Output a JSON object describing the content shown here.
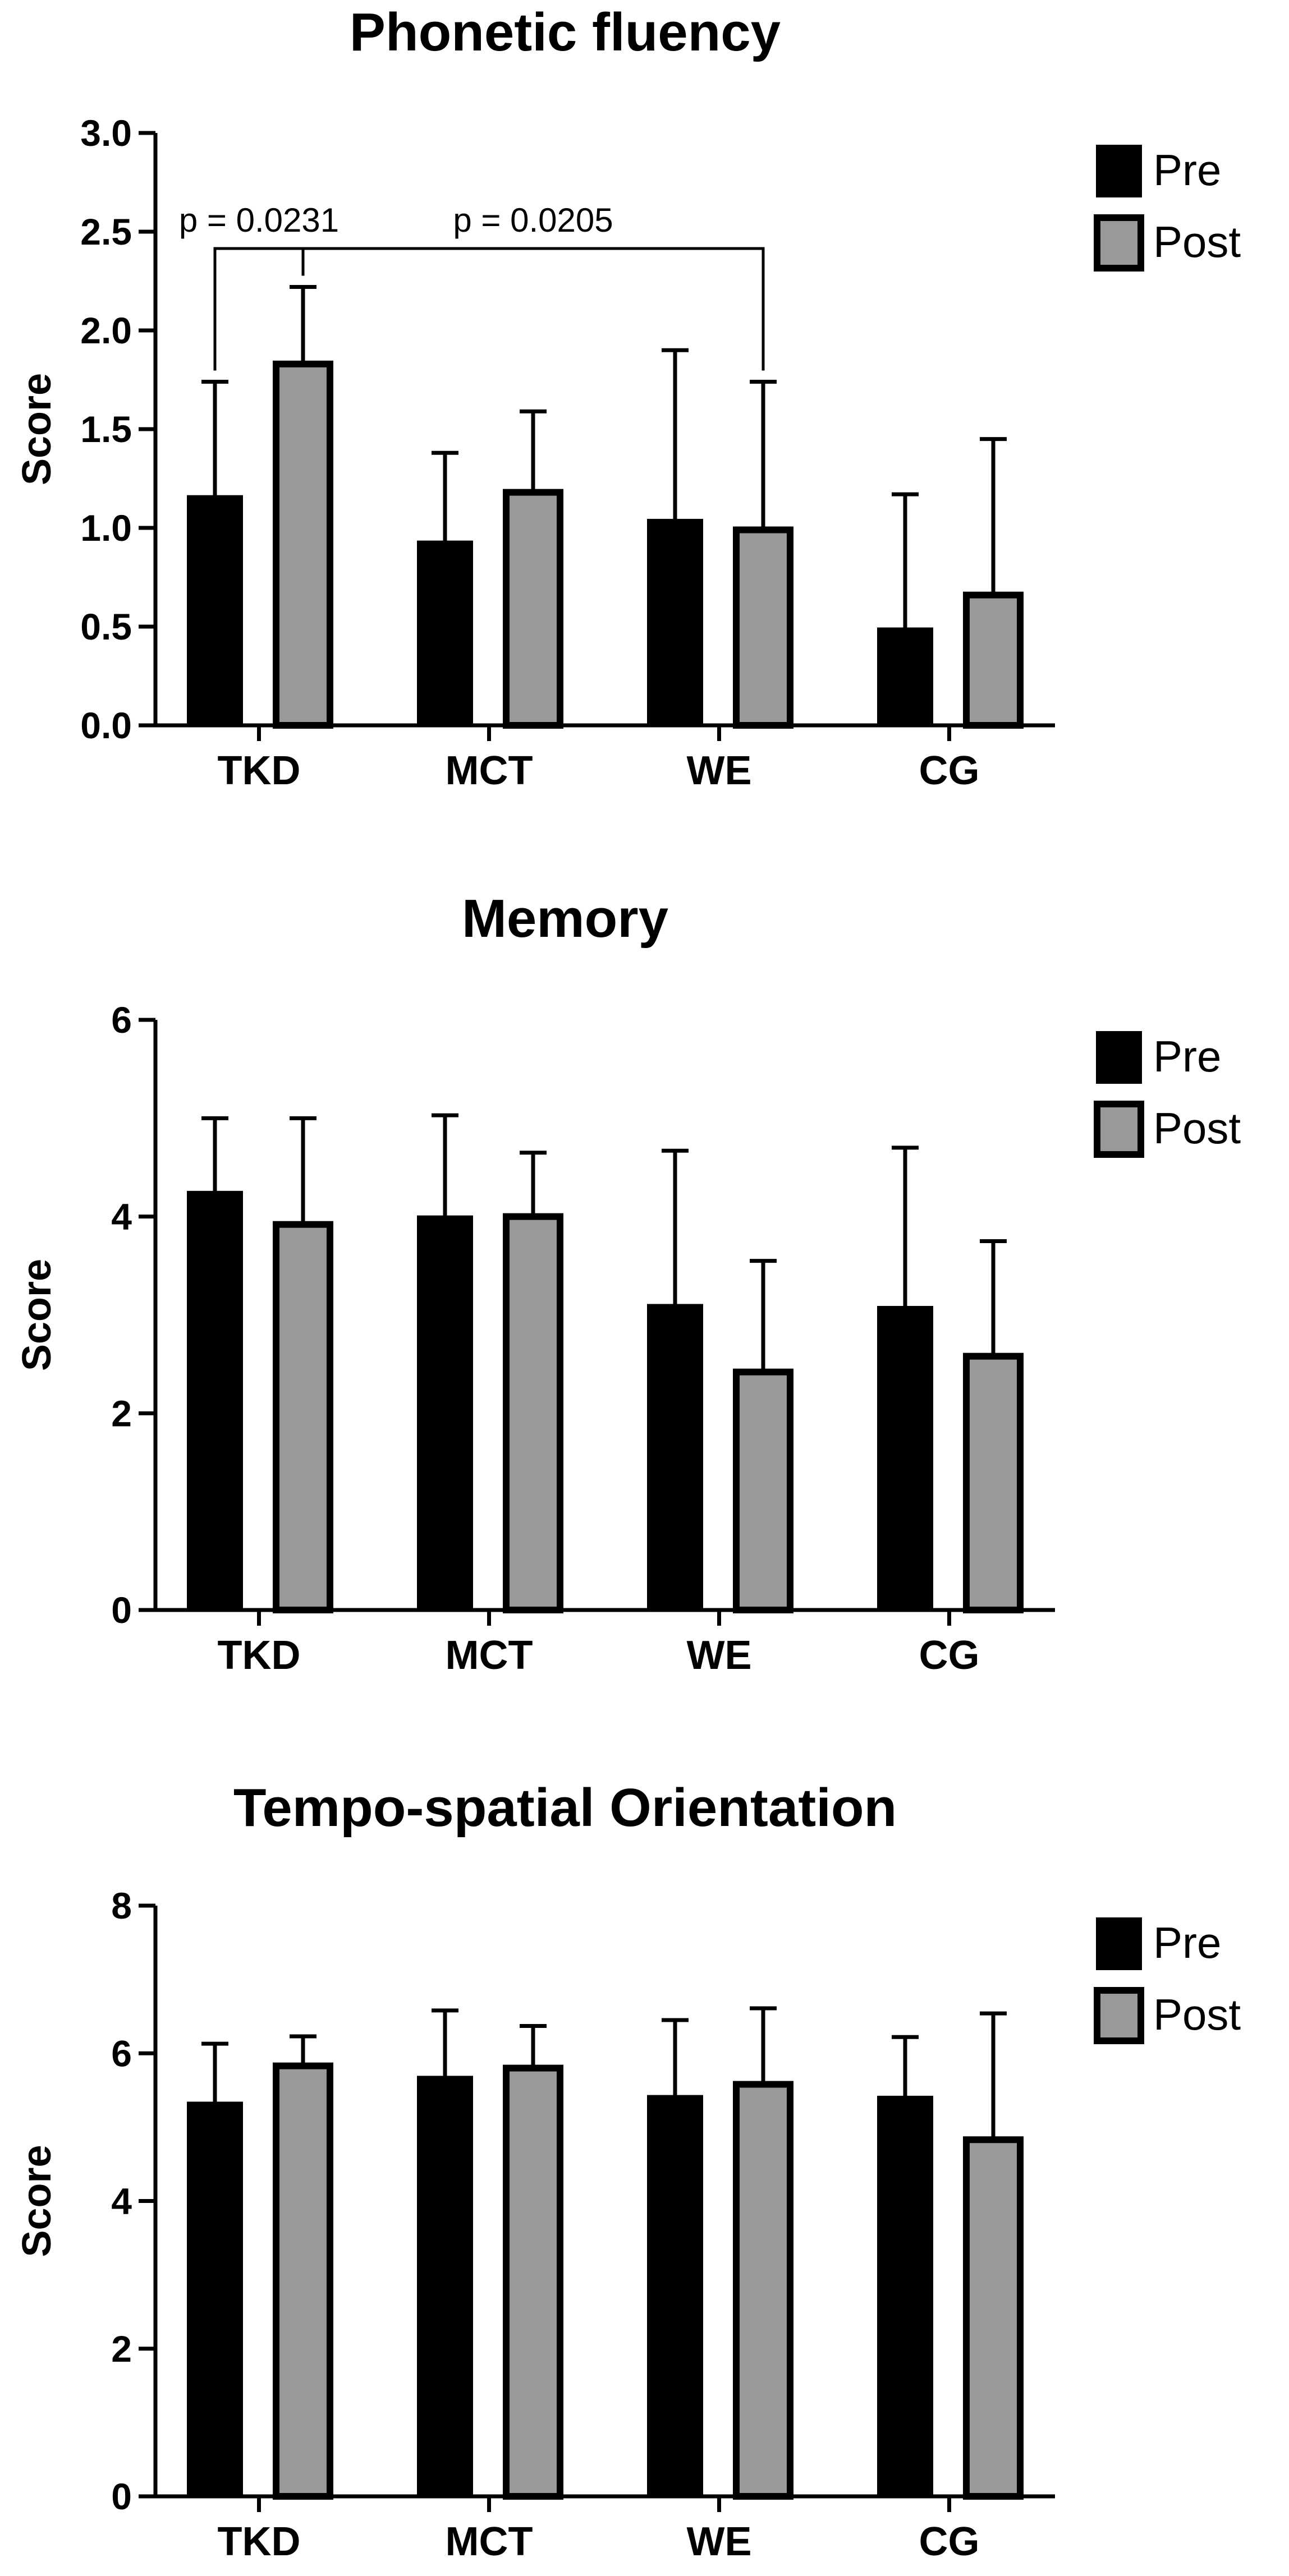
{
  "chart_data": [
    {
      "type": "bar",
      "title": "Phonetic fluency",
      "xlabel": "",
      "ylabel": "Score",
      "categories": [
        "TKD",
        "MCT",
        "WE",
        "CG"
      ],
      "ylim": [
        0,
        3.0
      ],
      "yticks": [
        0.0,
        0.5,
        1.0,
        1.5,
        2.0,
        2.5,
        3.0
      ],
      "ytick_labels": [
        "0.0",
        "0.5",
        "1.0",
        "1.5",
        "2.0",
        "2.5",
        "3.0"
      ],
      "legend": [
        "Pre",
        "Post"
      ],
      "legend_position": "top-right",
      "series": [
        {
          "name": "Pre",
          "color": "#000000",
          "values": [
            1.16,
            0.93,
            1.04,
            0.49
          ],
          "errors": [
            0.58,
            0.45,
            0.86,
            0.68
          ]
        },
        {
          "name": "Post",
          "color": "#999999",
          "values": [
            1.83,
            1.18,
            0.99,
            0.66
          ],
          "errors": [
            0.39,
            0.41,
            0.75,
            0.79
          ]
        }
      ],
      "annotations": [
        {
          "text": "p = 0.0231",
          "from": {
            "series": 0,
            "category": 0
          },
          "to": {
            "series": 1,
            "category": 0
          }
        },
        {
          "text": "p = 0.0205",
          "from": {
            "series": 1,
            "category": 0
          },
          "to": {
            "series": 1,
            "category": 2
          }
        }
      ]
    },
    {
      "type": "bar",
      "title": "Memory",
      "xlabel": "",
      "ylabel": "Score",
      "categories": [
        "TKD",
        "MCT",
        "WE",
        "CG"
      ],
      "ylim": [
        0,
        6
      ],
      "yticks": [
        0,
        2,
        4,
        6
      ],
      "ytick_labels": [
        "0",
        "2",
        "4",
        "6"
      ],
      "legend": [
        "Pre",
        "Post"
      ],
      "legend_position": "top-right",
      "series": [
        {
          "name": "Pre",
          "color": "#000000",
          "values": [
            4.25,
            4.0,
            3.1,
            3.08
          ],
          "errors": [
            0.75,
            1.03,
            1.57,
            1.62
          ]
        },
        {
          "name": "Post",
          "color": "#999999",
          "values": [
            3.92,
            4.0,
            2.42,
            2.58
          ],
          "errors": [
            1.08,
            0.65,
            1.13,
            1.17
          ]
        }
      ],
      "annotations": []
    },
    {
      "type": "bar",
      "title": "Tempo-spatial Orientation",
      "xlabel": "",
      "ylabel": "Score",
      "categories": [
        "TKD",
        "MCT",
        "WE",
        "CG"
      ],
      "ylim": [
        0,
        8
      ],
      "yticks": [
        0,
        2,
        4,
        6,
        8
      ],
      "ytick_labels": [
        "0",
        "2",
        "4",
        "6",
        "8"
      ],
      "legend": [
        "Pre",
        "Post"
      ],
      "legend_position": "top-right",
      "series": [
        {
          "name": "Pre",
          "color": "#000000",
          "values": [
            5.33,
            5.68,
            5.42,
            5.41
          ],
          "errors": [
            0.8,
            0.9,
            1.03,
            0.81
          ]
        },
        {
          "name": "Post",
          "color": "#999999",
          "values": [
            5.83,
            5.8,
            5.58,
            4.83
          ],
          "errors": [
            0.4,
            0.57,
            1.03,
            1.71
          ]
        }
      ],
      "annotations": []
    }
  ]
}
